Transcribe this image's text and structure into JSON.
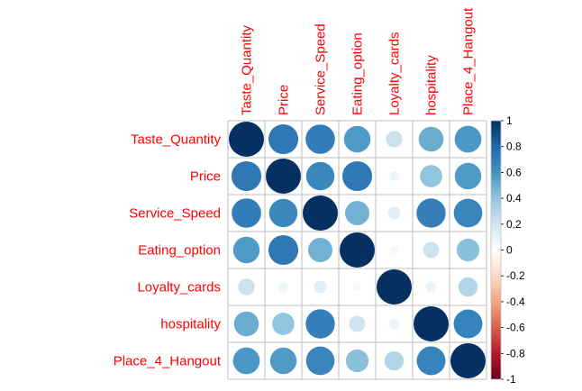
{
  "chart_data": {
    "type": "heatmap",
    "subtype": "correlation-circles",
    "variables": [
      "Taste_Quantity",
      "Price",
      "Service_Speed",
      "Eating_option",
      "Loyalty_cards",
      "hospitality",
      "Place_4_Hangout"
    ],
    "matrix": [
      [
        1.0,
        0.72,
        0.7,
        0.57,
        0.22,
        0.5,
        0.58
      ],
      [
        0.72,
        1.0,
        0.65,
        0.72,
        0.08,
        0.4,
        0.57
      ],
      [
        0.7,
        0.65,
        1.0,
        0.48,
        0.13,
        0.69,
        0.66
      ],
      [
        0.57,
        0.72,
        0.48,
        1.0,
        0.05,
        0.21,
        0.42
      ],
      [
        0.22,
        0.08,
        0.13,
        0.05,
        1.0,
        0.09,
        0.3
      ],
      [
        0.5,
        0.4,
        0.69,
        0.21,
        0.09,
        1.0,
        0.67
      ],
      [
        0.58,
        0.57,
        0.66,
        0.42,
        0.3,
        0.67,
        1.0
      ]
    ],
    "colorbar": {
      "range": [
        -1,
        1
      ],
      "ticks": [
        "1",
        "0.8",
        "0.6",
        "0.4",
        "0.2",
        "0",
        "-0.2",
        "-0.4",
        "-0.6",
        "-0.8",
        "-1"
      ],
      "tick_values": [
        1,
        0.8,
        0.6,
        0.4,
        0.2,
        0,
        -0.2,
        -0.4,
        -0.6,
        -0.8,
        -1
      ],
      "palette": [
        "#67001f",
        "#b2182b",
        "#d6604d",
        "#f4a582",
        "#fddbc7",
        "#ffffff",
        "#d1e5f0",
        "#92c5de",
        "#4393c3",
        "#2166ac",
        "#053061"
      ]
    },
    "label_color": "#ff0000",
    "grid_color": "#bebebe",
    "legend_position": "right"
  }
}
